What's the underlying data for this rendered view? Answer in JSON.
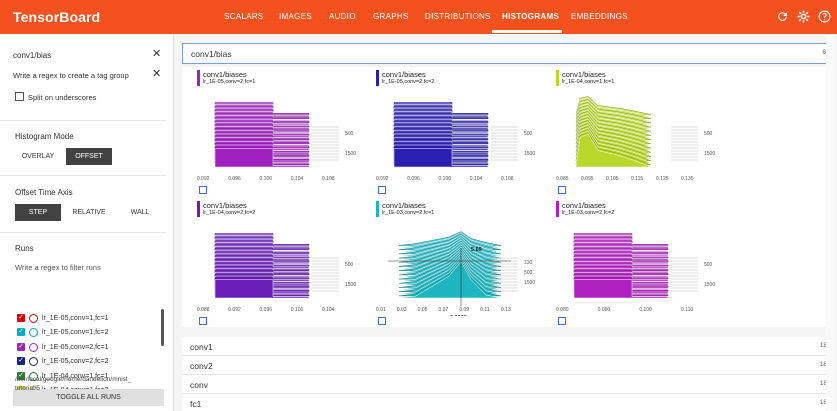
{
  "app": {
    "title": "TensorBoard"
  },
  "nav": {
    "tabs": [
      {
        "label": "SCALARS"
      },
      {
        "label": "IMAGES"
      },
      {
        "label": "AUDIO"
      },
      {
        "label": "GRAPHS"
      },
      {
        "label": "DISTRIBUTIONS"
      },
      {
        "label": "HISTOGRAMS"
      },
      {
        "label": "EMBEDDINGS"
      }
    ],
    "active": "HISTOGRAMS",
    "icons": [
      "refresh-icon",
      "settings-icon",
      "help-icon"
    ]
  },
  "sidebar": {
    "tag_filter_value": "conv1/bias",
    "tag_filter_placeholder": "Write a regex to create a tag group",
    "split_label": "Split on underscores",
    "histogram_mode": {
      "heading": "Histogram Mode",
      "options": [
        "OVERLAY",
        "OFFSET"
      ],
      "selected": "OFFSET"
    },
    "offset_axis": {
      "heading": "Offset Time Axis",
      "options": [
        "STEP",
        "RELATIVE",
        "WALL"
      ],
      "selected": "STEP"
    },
    "runs": {
      "heading": "Runs",
      "filter_placeholder": "Write a regex to filter runs",
      "items": [
        {
          "label": "lr_1E-05,conv=1,fc=1",
          "color": "#d50000",
          "checked": true
        },
        {
          "label": "lr_1E-05,conv=1,fc=2",
          "color": "#00acc1",
          "checked": true
        },
        {
          "label": "lr_1E-05,conv=2,fc=1",
          "color": "#9c27b0",
          "checked": true
        },
        {
          "label": "lr_1E-05,conv=2,fc=2",
          "color": "#1a237e",
          "checked": true
        },
        {
          "label": "lr_1E-04,conv=1,fc=1",
          "color": "#2e7d32",
          "checked": true
        },
        {
          "label": "lr_1E-04,conv=1,fc=2",
          "color": "#c0ca33",
          "checked": true
        }
      ],
      "toggle_label": "TOGGLE ALL RUNS",
      "logdir": [
        "/usr/local/google/home/dandelion/mnist_",
        "tutorial/5"
      ]
    }
  },
  "groups": [
    {
      "name": "conv1/bias",
      "count": "6",
      "open": true
    },
    {
      "name": "conv1",
      "count": "18"
    },
    {
      "name": "conv2",
      "count": "18"
    },
    {
      "name": "conv",
      "count": "18"
    },
    {
      "name": "fc1",
      "count": "18"
    }
  ],
  "cards": [
    {
      "title": "conv1/biases",
      "run": "lr_1E-05,conv=2,fc=1",
      "color": "#a020c0",
      "xticks": [
        "0.092",
        "0.096",
        "0.100",
        "0.104",
        "0.108"
      ],
      "yticks": [
        "500",
        "1500"
      ]
    },
    {
      "title": "conv1/biases",
      "run": "lr_1E-05,conv=2,fc=2",
      "color": "#2a1fb0",
      "xticks": [
        "0.092",
        "0.096",
        "0.100",
        "0.104",
        "0.108"
      ],
      "yticks": [
        "500",
        "1500"
      ]
    },
    {
      "title": "conv1/biases",
      "run": "lr_1E-04,conv=1,fc=1",
      "color": "#b8d82a",
      "xticks": [
        "0.085",
        "0.095",
        "0.105",
        "0.115",
        "0.125",
        "0.135"
      ],
      "yticks": [
        "500",
        "1500"
      ]
    },
    {
      "title": "conv1/biases",
      "run": "lr_1E-04,conv=2,fc=2",
      "color": "#6a1fb8",
      "xticks": [
        "0.088",
        "0.092",
        "0.096",
        "0.100",
        "0.104"
      ],
      "yticks": [
        "500",
        "1500"
      ]
    },
    {
      "title": "conv1/biases",
      "run": "lr_1E-03,conv=2,fc=1",
      "color": "#1fb5c0",
      "xticks": [
        "0.01",
        "0.03",
        "0.05",
        "0.07",
        "0.09",
        "0.11",
        "0.13"
      ],
      "yticks": [
        "130",
        "500",
        "1500"
      ],
      "hover": {
        "x": "0.0968",
        "y": "5.69"
      }
    },
    {
      "title": "conv1/biases",
      "run": "lr_1E-03,conv=2,fc=2",
      "color": "#b020c0",
      "xticks": [
        "0.080",
        "0.090",
        "0.100",
        "0.110"
      ],
      "yticks": [
        "500",
        "1500"
      ]
    }
  ]
}
